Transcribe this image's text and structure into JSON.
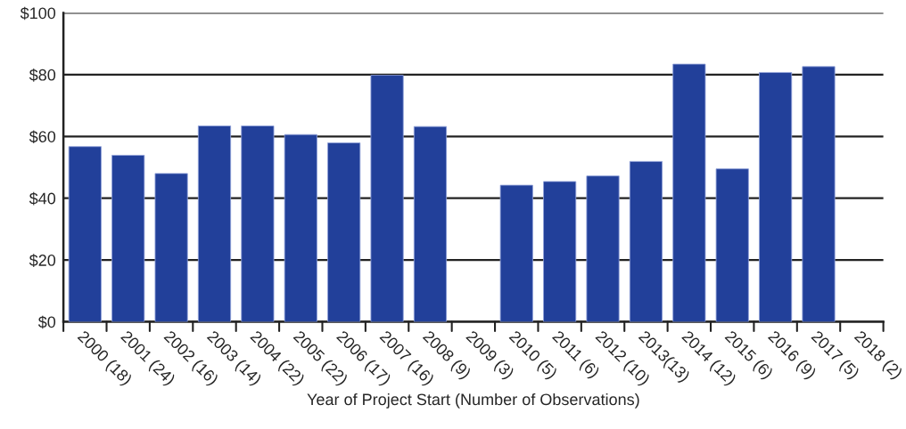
{
  "chart_data": {
    "type": "bar",
    "xlabel": "Year of Project Start (Number of Observations)",
    "categories": [
      "2000 (18)",
      "2001 (24)",
      "2002 (16)",
      "2003 (14)",
      "2004 (22)",
      "2005 (22)",
      "2006 (17)",
      "2007 (16)",
      "2008 (9)",
      "2009 (3)",
      "2010 (5)",
      "2011 (6)",
      "2012 (10)",
      "2013(13)",
      "2014 (12)",
      "2015 (6)",
      "2016 (9)",
      "2017 (5)",
      "2018 (2)"
    ],
    "values": [
      56.7,
      53.9,
      48.0,
      63.4,
      63.4,
      60.6,
      57.9,
      79.8,
      63.2,
      null,
      44.2,
      45.4,
      47.2,
      51.9,
      83.4,
      49.5,
      80.7,
      82.6,
      null
    ],
    "color": "#22409a",
    "ylim": [
      0,
      100
    ],
    "yticks": [
      {
        "value": 0,
        "label": "$0"
      },
      {
        "value": 20,
        "label": "$20"
      },
      {
        "value": 40,
        "label": "$40"
      },
      {
        "value": 60,
        "label": "$60"
      },
      {
        "value": 80,
        "label": "$80"
      },
      {
        "value": 100,
        "label": "$100"
      }
    ],
    "grid": "y"
  }
}
